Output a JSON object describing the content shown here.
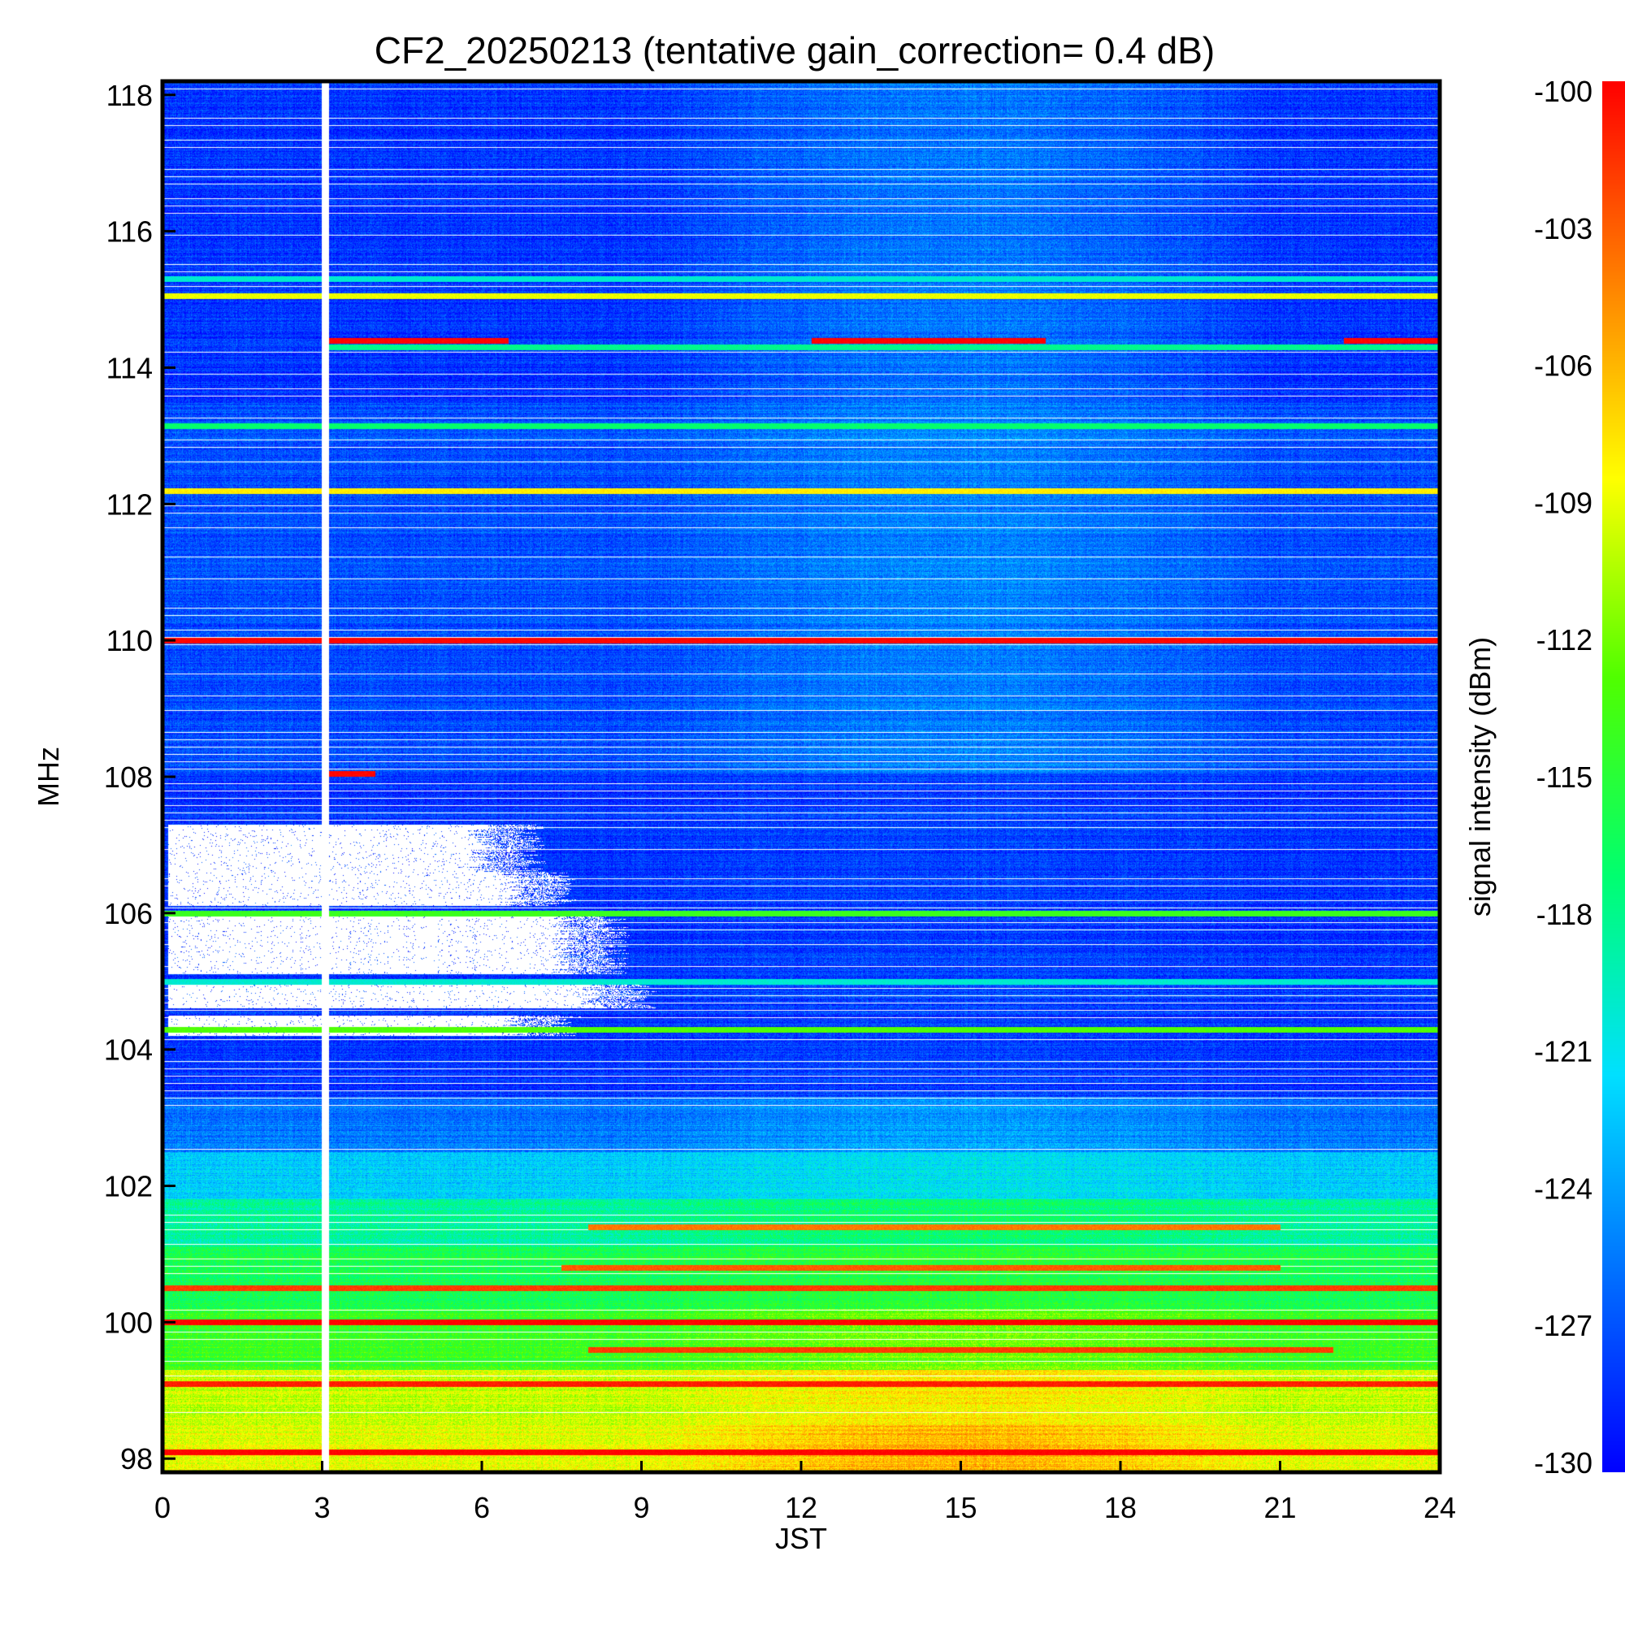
{
  "chart_data": {
    "type": "heatmap",
    "title": "CF2_20250213 (tentative gain_correction=  0.4 dB)",
    "xlabel": "JST",
    "ylabel": "MHz",
    "colorbar_label": "signal intensity (dBm)",
    "xlim": [
      0,
      24
    ],
    "ylim": [
      97.8,
      118.2
    ],
    "clim": [
      -130,
      -100
    ],
    "xticks": [
      "0",
      "3",
      "6",
      "9",
      "12",
      "15",
      "18",
      "21",
      "24"
    ],
    "yticks": [
      "98",
      "100",
      "102",
      "104",
      "106",
      "108",
      "110",
      "112",
      "114",
      "116",
      "118"
    ],
    "colorbar_ticks": [
      "-100",
      "-103",
      "-106",
      "-109",
      "-112",
      "-115",
      "-118",
      "-121",
      "-124",
      "-127",
      "-130"
    ],
    "colormap": [
      "#0000ff",
      "#0070ff",
      "#00e0ff",
      "#00ff70",
      "#50ff00",
      "#ffff00",
      "#ff8000",
      "#ff0000"
    ],
    "data_gap_jst": 3.05,
    "background_levels": [
      {
        "f_from": 97.8,
        "f_to": 98.5,
        "night": -109,
        "day": -106
      },
      {
        "f_from": 98.5,
        "f_to": 99.3,
        "night": -110,
        "day": -108
      },
      {
        "f_from": 99.3,
        "f_to": 100.2,
        "night": -114,
        "day": -112
      },
      {
        "f_from": 100.2,
        "f_to": 101.1,
        "night": -116,
        "day": -115
      },
      {
        "f_from": 101.1,
        "f_to": 101.8,
        "night": -118.5,
        "day": -117
      },
      {
        "f_from": 101.8,
        "f_to": 102.5,
        "night": -122,
        "day": -121
      },
      {
        "f_from": 102.5,
        "f_to": 103.3,
        "night": -125.5,
        "day": -124
      },
      {
        "f_from": 103.3,
        "f_to": 108.05,
        "night": -128,
        "day": -127.5
      },
      {
        "f_from": 108.05,
        "f_to": 113.5,
        "night": -127,
        "day": -125
      },
      {
        "f_from": 113.5,
        "f_to": 118.2,
        "night": -128,
        "day": -125.5
      }
    ],
    "saturated_regions": [
      {
        "f_from": 104.6,
        "f_to": 105.0,
        "t_from": 0.1,
        "t_to": 9.0
      },
      {
        "f_from": 105.1,
        "f_to": 106.0,
        "t_from": 0.1,
        "t_to": 8.5
      },
      {
        "f_from": 106.1,
        "f_to": 106.6,
        "t_from": 0.1,
        "t_to": 7.5
      },
      {
        "f_from": 106.6,
        "f_to": 107.3,
        "t_from": 0.1,
        "t_to": 6.9
      },
      {
        "f_from": 104.2,
        "f_to": 104.5,
        "t_from": 0.1,
        "t_to": 7.6
      }
    ],
    "stations": [
      {
        "freq": 98.1,
        "level": -100,
        "t_from": 0,
        "t_to": 24
      },
      {
        "freq": 99.1,
        "level": -101,
        "t_from": 0,
        "t_to": 24
      },
      {
        "freq": 99.6,
        "level": -102,
        "t_from": 8,
        "t_to": 22
      },
      {
        "freq": 100.0,
        "level": -100,
        "t_from": 0,
        "t_to": 24
      },
      {
        "freq": 100.5,
        "level": -102,
        "t_from": 0,
        "t_to": 24
      },
      {
        "freq": 100.8,
        "level": -103,
        "t_from": 7.5,
        "t_to": 21
      },
      {
        "freq": 101.4,
        "level": -104,
        "t_from": 8,
        "t_to": 21
      },
      {
        "freq": 104.3,
        "level": -113,
        "t_from": 0,
        "t_to": 24
      },
      {
        "freq": 105.0,
        "level": -120,
        "t_from": 0,
        "t_to": 24
      },
      {
        "freq": 106.0,
        "level": -114,
        "t_from": 0,
        "t_to": 24
      },
      {
        "freq": 108.05,
        "level": -100,
        "t_from": 3.1,
        "t_to": 4.0
      },
      {
        "freq": 110.0,
        "level": -100,
        "t_from": 0,
        "t_to": 24
      },
      {
        "freq": 112.2,
        "level": -108,
        "t_from": 0,
        "t_to": 24
      },
      {
        "freq": 113.15,
        "level": -117,
        "t_from": 0,
        "t_to": 24
      },
      {
        "freq": 114.4,
        "level": -100,
        "t_from": 3.1,
        "t_to": 6.5
      },
      {
        "freq": 114.4,
        "level": -100,
        "t_from": 12.2,
        "t_to": 16.6
      },
      {
        "freq": 114.4,
        "level": -100,
        "t_from": 22.2,
        "t_to": 24
      },
      {
        "freq": 114.3,
        "level": -118,
        "t_from": 3.1,
        "t_to": 24
      },
      {
        "freq": 115.05,
        "level": -109,
        "t_from": 0,
        "t_to": 24
      },
      {
        "freq": 115.3,
        "level": -120,
        "t_from": 0,
        "t_to": 24
      }
    ]
  }
}
